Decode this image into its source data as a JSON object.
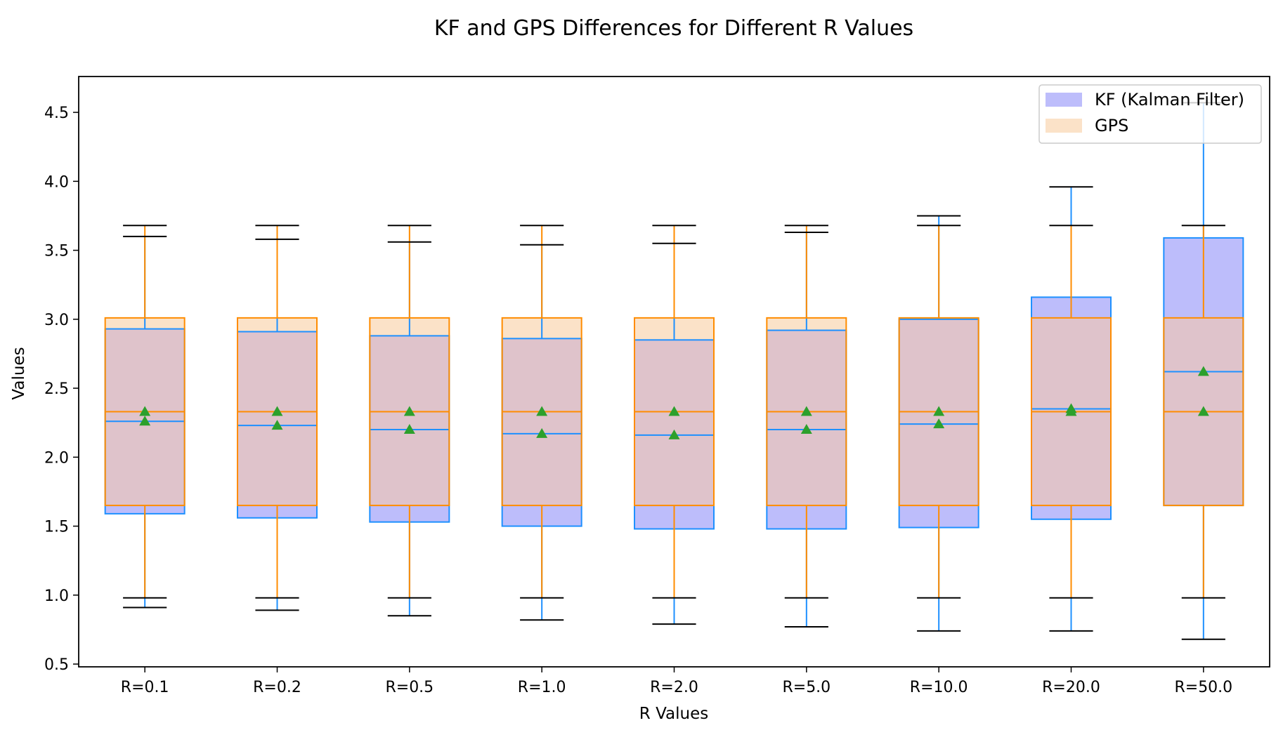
{
  "chart_data": {
    "type": "boxplot",
    "title": "KF and GPS Differences for Different R Values",
    "xlabel": "R Values",
    "ylabel": "Values",
    "ylim": [
      0.48,
      4.76
    ],
    "yticks": [
      0.5,
      1.0,
      1.5,
      2.0,
      2.5,
      3.0,
      3.5,
      4.0,
      4.5
    ],
    "ytick_labels": [
      "0.5",
      "1.0",
      "1.5",
      "2.0",
      "2.5",
      "3.0",
      "3.5",
      "4.0",
      "4.5"
    ],
    "categories": [
      "R=0.1",
      "R=0.2",
      "R=0.5",
      "R=1.0",
      "R=2.0",
      "R=5.0",
      "R=10.0",
      "R=20.0",
      "R=50.0"
    ],
    "grid": false,
    "legend_position": "upper-right",
    "colors": {
      "kf_fill": "#bdbdfb",
      "kf_edge": "#1e90ff",
      "gps_fill": "#fbe2c8",
      "gps_edge": "#ff8c00",
      "overlap_fill": "#dfc3cb",
      "whisker_cap": "#000000",
      "mean_marker": "#2ca02c"
    },
    "series": [
      {
        "name": "KF (Kalman Filter)",
        "boxes": [
          {
            "whislo": 0.91,
            "q1": 1.59,
            "med": 2.26,
            "q3": 2.93,
            "whishi": 3.6,
            "mean": 2.26
          },
          {
            "whislo": 0.89,
            "q1": 1.56,
            "med": 2.23,
            "q3": 2.91,
            "whishi": 3.58,
            "mean": 2.23
          },
          {
            "whislo": 0.85,
            "q1": 1.53,
            "med": 2.2,
            "q3": 2.88,
            "whishi": 3.56,
            "mean": 2.2
          },
          {
            "whislo": 0.82,
            "q1": 1.5,
            "med": 2.17,
            "q3": 2.86,
            "whishi": 3.54,
            "mean": 2.17
          },
          {
            "whislo": 0.79,
            "q1": 1.48,
            "med": 2.16,
            "q3": 2.85,
            "whishi": 3.55,
            "mean": 2.16
          },
          {
            "whislo": 0.77,
            "q1": 1.48,
            "med": 2.2,
            "q3": 2.92,
            "whishi": 3.63,
            "mean": 2.2
          },
          {
            "whislo": 0.74,
            "q1": 1.49,
            "med": 2.24,
            "q3": 3.0,
            "whishi": 3.75,
            "mean": 2.24
          },
          {
            "whislo": 0.74,
            "q1": 1.55,
            "med": 2.35,
            "q3": 3.16,
            "whishi": 3.96,
            "mean": 2.35
          },
          {
            "whislo": 0.68,
            "q1": 1.65,
            "med": 2.62,
            "q3": 3.59,
            "whishi": 4.57,
            "mean": 2.62
          }
        ]
      },
      {
        "name": "GPS",
        "boxes": [
          {
            "whislo": 0.98,
            "q1": 1.65,
            "med": 2.33,
            "q3": 3.01,
            "whishi": 3.68,
            "mean": 2.33
          },
          {
            "whislo": 0.98,
            "q1": 1.65,
            "med": 2.33,
            "q3": 3.01,
            "whishi": 3.68,
            "mean": 2.33
          },
          {
            "whislo": 0.98,
            "q1": 1.65,
            "med": 2.33,
            "q3": 3.01,
            "whishi": 3.68,
            "mean": 2.33
          },
          {
            "whislo": 0.98,
            "q1": 1.65,
            "med": 2.33,
            "q3": 3.01,
            "whishi": 3.68,
            "mean": 2.33
          },
          {
            "whislo": 0.98,
            "q1": 1.65,
            "med": 2.33,
            "q3": 3.01,
            "whishi": 3.68,
            "mean": 2.33
          },
          {
            "whislo": 0.98,
            "q1": 1.65,
            "med": 2.33,
            "q3": 3.01,
            "whishi": 3.68,
            "mean": 2.33
          },
          {
            "whislo": 0.98,
            "q1": 1.65,
            "med": 2.33,
            "q3": 3.01,
            "whishi": 3.68,
            "mean": 2.33
          },
          {
            "whislo": 0.98,
            "q1": 1.65,
            "med": 2.33,
            "q3": 3.01,
            "whishi": 3.68,
            "mean": 2.33
          },
          {
            "whislo": 0.98,
            "q1": 1.65,
            "med": 2.33,
            "q3": 3.01,
            "whishi": 3.68,
            "mean": 2.33
          }
        ]
      }
    ]
  }
}
